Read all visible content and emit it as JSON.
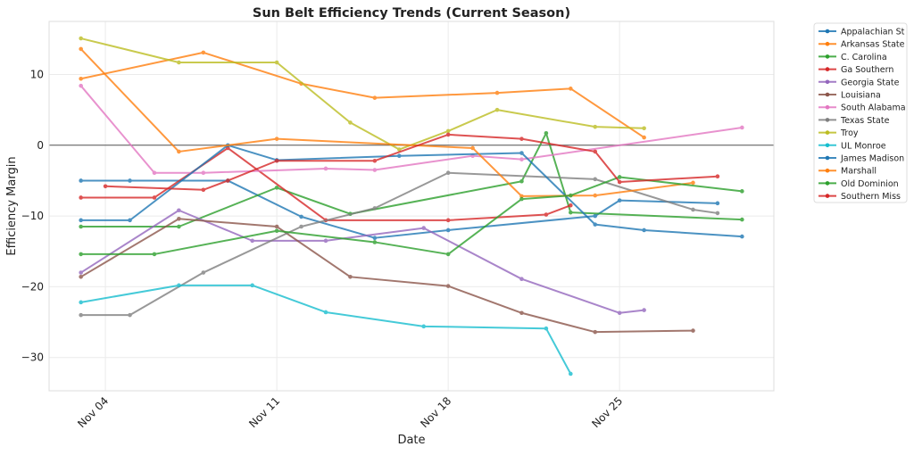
{
  "chart_data": {
    "type": "line",
    "title": "Sun Belt Efficiency Trends (Current Season)",
    "xlabel": "Date",
    "ylabel": "Efficiency Margin",
    "x_unit": "day of November",
    "xlim": [
      1.7,
      31.3
    ],
    "ylim": [
      -34.7,
      17.5
    ],
    "x_ticks": [
      {
        "value": 4,
        "label": "Nov 04"
      },
      {
        "value": 11,
        "label": "Nov 11"
      },
      {
        "value": 18,
        "label": "Nov 18"
      },
      {
        "value": 25,
        "label": "Nov 25"
      }
    ],
    "y_ticks": [
      {
        "value": 10,
        "label": "10"
      },
      {
        "value": 0,
        "label": "0"
      },
      {
        "value": -10,
        "label": "−10"
      },
      {
        "value": -20,
        "label": "−20"
      },
      {
        "value": -30,
        "label": "−30"
      }
    ],
    "grid": true,
    "reference_line": 0,
    "legend_placement": "outside-right",
    "series": [
      {
        "name": "Appalachian St",
        "color": "#1f77b4",
        "points": [
          [
            3,
            -5.0
          ],
          [
            5,
            -5.0
          ],
          [
            9,
            -5.0
          ],
          [
            12,
            -10.1
          ],
          [
            15,
            -13.1
          ],
          [
            18,
            -12.0
          ],
          [
            24,
            -10.0
          ],
          [
            25,
            -7.8
          ],
          [
            29,
            -8.2
          ]
        ]
      },
      {
        "name": "Arkansas State",
        "color": "#ff7f0e",
        "points": [
          [
            3,
            9.4
          ],
          [
            8,
            13.1
          ],
          [
            12,
            8.7
          ],
          [
            15,
            6.7
          ],
          [
            20,
            7.4
          ],
          [
            23,
            8.0
          ],
          [
            26,
            1.1
          ]
        ]
      },
      {
        "name": "C. Carolina",
        "color": "#2ca02c",
        "points": [
          [
            3,
            -11.5
          ],
          [
            7,
            -11.5
          ],
          [
            11,
            -6.0
          ],
          [
            14,
            -9.7
          ],
          [
            21,
            -5.1
          ],
          [
            22,
            1.7
          ],
          [
            23,
            -9.5
          ],
          [
            30,
            -10.5
          ]
        ]
      },
      {
        "name": "Ga Southern",
        "color": "#d62728",
        "points": [
          [
            3,
            -7.4
          ],
          [
            6,
            -7.4
          ],
          [
            9,
            -0.4
          ],
          [
            13,
            -10.6
          ],
          [
            18,
            -10.6
          ],
          [
            22,
            -9.8
          ],
          [
            23,
            -8.5
          ]
        ]
      },
      {
        "name": "Georgia State",
        "color": "#9467bd",
        "points": [
          [
            3,
            -18.0
          ],
          [
            7,
            -9.2
          ],
          [
            10,
            -13.5
          ],
          [
            13,
            -13.5
          ],
          [
            17,
            -11.7
          ],
          [
            21,
            -18.9
          ],
          [
            25,
            -23.7
          ],
          [
            26,
            -23.3
          ]
        ]
      },
      {
        "name": "Louisiana",
        "color": "#8c564b",
        "points": [
          [
            3,
            -18.6
          ],
          [
            7,
            -10.4
          ],
          [
            11,
            -11.5
          ],
          [
            14,
            -18.6
          ],
          [
            18,
            -19.9
          ],
          [
            21,
            -23.7
          ],
          [
            24,
            -26.4
          ],
          [
            28,
            -26.2
          ]
        ]
      },
      {
        "name": "South Alabama",
        "color": "#e377c2",
        "points": [
          [
            3,
            8.4
          ],
          [
            6,
            -3.9
          ],
          [
            8,
            -3.9
          ],
          [
            13,
            -3.3
          ],
          [
            15,
            -3.5
          ],
          [
            19,
            -1.5
          ],
          [
            21,
            -2.0
          ],
          [
            30,
            2.5
          ]
        ]
      },
      {
        "name": "Texas State",
        "color": "#7f7f7f",
        "points": [
          [
            3,
            -24.0
          ],
          [
            5,
            -24.0
          ],
          [
            8,
            -18.0
          ],
          [
            12,
            -11.5
          ],
          [
            15,
            -8.9
          ],
          [
            18,
            -3.9
          ],
          [
            24,
            -4.8
          ],
          [
            28,
            -9.1
          ],
          [
            29,
            -9.6
          ]
        ]
      },
      {
        "name": "Troy",
        "color": "#bcbd22",
        "points": [
          [
            3,
            15.1
          ],
          [
            7,
            11.7
          ],
          [
            11,
            11.7
          ],
          [
            14,
            3.2
          ],
          [
            16,
            -0.6
          ],
          [
            18,
            2.0
          ],
          [
            20,
            5.0
          ],
          [
            24,
            2.6
          ],
          [
            26,
            2.4
          ]
        ]
      },
      {
        "name": "UL Monroe",
        "color": "#17becf",
        "points": [
          [
            3,
            -22.2
          ],
          [
            7,
            -19.8
          ],
          [
            10,
            -19.8
          ],
          [
            13,
            -23.6
          ],
          [
            17,
            -25.6
          ],
          [
            22,
            -25.9
          ],
          [
            23,
            -32.3
          ]
        ]
      },
      {
        "name": "James Madison",
        "color": "#1f77b4",
        "points": [
          [
            3,
            -10.6
          ],
          [
            5,
            -10.6
          ],
          [
            9,
            0.0
          ],
          [
            11,
            -2.1
          ],
          [
            16,
            -1.5
          ],
          [
            21,
            -1.1
          ],
          [
            24,
            -11.2
          ],
          [
            26,
            -12.0
          ],
          [
            30,
            -12.9
          ]
        ]
      },
      {
        "name": "Marshall",
        "color": "#ff7f0e",
        "points": [
          [
            3,
            13.6
          ],
          [
            7,
            -0.9
          ],
          [
            11,
            0.9
          ],
          [
            19,
            -0.4
          ],
          [
            21,
            -7.2
          ],
          [
            24,
            -7.1
          ],
          [
            28,
            -5.3
          ]
        ]
      },
      {
        "name": "Old Dominion",
        "color": "#2ca02c",
        "points": [
          [
            3,
            -15.4
          ],
          [
            6,
            -15.4
          ],
          [
            11,
            -12.1
          ],
          [
            15,
            -13.7
          ],
          [
            18,
            -15.4
          ],
          [
            21,
            -7.6
          ],
          [
            23,
            -7.1
          ],
          [
            25,
            -4.5
          ],
          [
            30,
            -6.5
          ]
        ]
      },
      {
        "name": "Southern Miss",
        "color": "#d62728",
        "points": [
          [
            4,
            -5.8
          ],
          [
            8,
            -6.3
          ],
          [
            9,
            -5.0
          ],
          [
            11,
            -2.2
          ],
          [
            15,
            -2.2
          ],
          [
            18,
            1.5
          ],
          [
            21,
            0.9
          ],
          [
            24,
            -0.9
          ],
          [
            25,
            -5.2
          ],
          [
            29,
            -4.4
          ]
        ]
      }
    ]
  }
}
